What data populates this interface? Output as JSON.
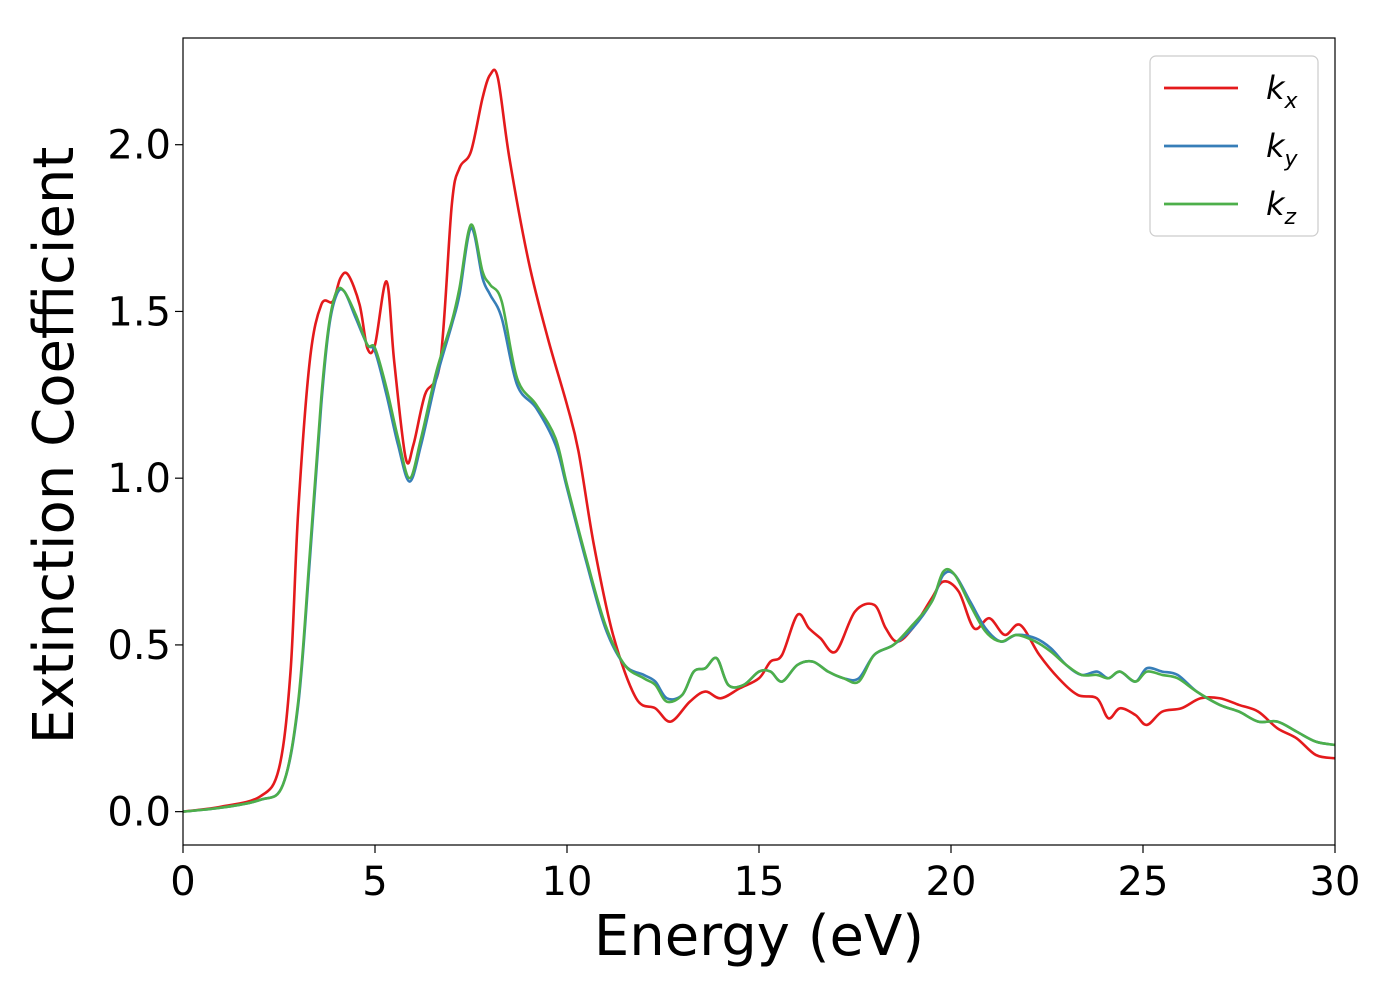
{
  "chart_data": {
    "type": "line",
    "title": "",
    "xlabel": "Energy (eV)",
    "ylabel": "Extinction Coefficient",
    "xlim": [
      0,
      30
    ],
    "ylim": [
      -0.1,
      2.32
    ],
    "xticks": [
      0,
      5,
      10,
      15,
      20,
      25,
      30
    ],
    "xtick_labels": [
      "0",
      "5",
      "10",
      "15",
      "20",
      "25",
      "30"
    ],
    "yticks": [
      0.0,
      0.5,
      1.0,
      1.5,
      2.0
    ],
    "ytick_labels": [
      "0.0",
      "0.5",
      "1.0",
      "1.5",
      "2.0"
    ],
    "grid": false,
    "legend_position": "top-right",
    "series": [
      {
        "name": "k_x",
        "label_main": "k",
        "label_sub": "x",
        "color": "#e41a1c",
        "x": [
          0,
          1,
          2,
          2.5,
          2.8,
          3.0,
          3.3,
          3.6,
          3.9,
          4.1,
          4.3,
          4.6,
          4.8,
          5.0,
          5.3,
          5.5,
          5.8,
          6.0,
          6.3,
          6.7,
          7.0,
          7.2,
          7.5,
          7.8,
          8.0,
          8.2,
          8.5,
          9.0,
          9.5,
          10.0,
          10.3,
          10.7,
          11.2,
          11.8,
          12.3,
          12.7,
          13.2,
          13.6,
          14.0,
          14.5,
          15.0,
          15.3,
          15.6,
          16.0,
          16.3,
          16.6,
          17.0,
          17.5,
          18.0,
          18.3,
          18.6,
          19.0,
          19.5,
          19.8,
          20.2,
          20.6,
          21.0,
          21.4,
          21.8,
          22.3,
          22.8,
          23.3,
          23.8,
          24.1,
          24.4,
          24.8,
          25.1,
          25.5,
          26.0,
          26.5,
          27.0,
          27.5,
          28.0,
          28.5,
          29.0,
          29.5,
          30.0
        ],
        "y": [
          0.0,
          0.015,
          0.045,
          0.13,
          0.42,
          0.9,
          1.35,
          1.52,
          1.53,
          1.6,
          1.61,
          1.52,
          1.39,
          1.4,
          1.59,
          1.35,
          1.06,
          1.1,
          1.25,
          1.35,
          1.82,
          1.93,
          1.98,
          2.14,
          2.21,
          2.2,
          1.96,
          1.65,
          1.42,
          1.22,
          1.08,
          0.8,
          0.53,
          0.34,
          0.31,
          0.27,
          0.33,
          0.36,
          0.34,
          0.37,
          0.4,
          0.45,
          0.47,
          0.59,
          0.55,
          0.52,
          0.48,
          0.6,
          0.62,
          0.55,
          0.51,
          0.55,
          0.64,
          0.69,
          0.66,
          0.55,
          0.58,
          0.53,
          0.56,
          0.47,
          0.4,
          0.35,
          0.34,
          0.28,
          0.31,
          0.29,
          0.26,
          0.3,
          0.31,
          0.34,
          0.34,
          0.32,
          0.3,
          0.25,
          0.22,
          0.17,
          0.16
        ]
      },
      {
        "name": "k_y",
        "label_main": "k",
        "label_sub": "y",
        "color": "#377eb8",
        "x": [
          0,
          1,
          2,
          2.6,
          3.0,
          3.3,
          3.6,
          3.8,
          4.0,
          4.2,
          4.5,
          4.8,
          5.0,
          5.3,
          5.6,
          5.9,
          6.2,
          6.6,
          7.0,
          7.2,
          7.5,
          7.8,
          8.0,
          8.3,
          8.7,
          9.2,
          9.7,
          10.0,
          10.5,
          11.0,
          11.5,
          12.0,
          12.3,
          12.6,
          13.0,
          13.3,
          13.6,
          13.9,
          14.2,
          14.6,
          15.0,
          15.3,
          15.6,
          16.0,
          16.4,
          16.8,
          17.2,
          17.6,
          18.0,
          18.5,
          19.0,
          19.5,
          19.8,
          20.1,
          20.5,
          20.9,
          21.3,
          21.7,
          22.2,
          22.6,
          23.0,
          23.4,
          23.8,
          24.1,
          24.4,
          24.8,
          25.1,
          25.5,
          25.9,
          26.4,
          27.0,
          27.5,
          28.0,
          28.5,
          29.0,
          29.5,
          30.0
        ],
        "y": [
          0.0,
          0.012,
          0.035,
          0.08,
          0.32,
          0.75,
          1.22,
          1.45,
          1.55,
          1.56,
          1.48,
          1.4,
          1.38,
          1.25,
          1.1,
          0.99,
          1.1,
          1.3,
          1.46,
          1.55,
          1.75,
          1.6,
          1.55,
          1.48,
          1.28,
          1.21,
          1.1,
          0.97,
          0.75,
          0.55,
          0.44,
          0.41,
          0.39,
          0.34,
          0.35,
          0.42,
          0.43,
          0.46,
          0.38,
          0.38,
          0.42,
          0.42,
          0.39,
          0.44,
          0.45,
          0.42,
          0.4,
          0.4,
          0.47,
          0.5,
          0.55,
          0.63,
          0.71,
          0.71,
          0.63,
          0.55,
          0.51,
          0.53,
          0.52,
          0.49,
          0.44,
          0.41,
          0.42,
          0.4,
          0.42,
          0.39,
          0.43,
          0.42,
          0.41,
          0.36,
          0.32,
          0.3,
          0.27,
          0.27,
          0.24,
          0.21,
          0.2
        ]
      },
      {
        "name": "k_z",
        "label_main": "k",
        "label_sub": "z",
        "color": "#4daf4a",
        "x": [
          0,
          1,
          2,
          2.6,
          3.0,
          3.3,
          3.6,
          3.8,
          4.0,
          4.2,
          4.5,
          4.8,
          5.0,
          5.3,
          5.6,
          5.9,
          6.2,
          6.6,
          7.0,
          7.2,
          7.5,
          7.8,
          8.0,
          8.3,
          8.7,
          9.2,
          9.7,
          10.0,
          10.5,
          11.0,
          11.5,
          12.0,
          12.3,
          12.6,
          13.0,
          13.3,
          13.6,
          13.9,
          14.2,
          14.6,
          15.0,
          15.3,
          15.6,
          16.0,
          16.4,
          16.8,
          17.2,
          17.6,
          18.0,
          18.5,
          19.0,
          19.5,
          19.8,
          20.1,
          20.5,
          20.9,
          21.3,
          21.7,
          22.2,
          22.6,
          23.0,
          23.4,
          23.8,
          24.1,
          24.4,
          24.8,
          25.1,
          25.5,
          25.9,
          26.4,
          27.0,
          27.5,
          28.0,
          28.5,
          29.0,
          29.5,
          30.0
        ],
        "y": [
          0.0,
          0.012,
          0.035,
          0.08,
          0.33,
          0.77,
          1.24,
          1.46,
          1.56,
          1.56,
          1.49,
          1.4,
          1.39,
          1.27,
          1.12,
          1.0,
          1.12,
          1.32,
          1.47,
          1.57,
          1.76,
          1.62,
          1.58,
          1.53,
          1.3,
          1.22,
          1.12,
          0.98,
          0.76,
          0.56,
          0.44,
          0.4,
          0.38,
          0.33,
          0.35,
          0.42,
          0.43,
          0.46,
          0.38,
          0.38,
          0.42,
          0.42,
          0.39,
          0.44,
          0.45,
          0.42,
          0.4,
          0.39,
          0.47,
          0.5,
          0.56,
          0.63,
          0.72,
          0.71,
          0.62,
          0.54,
          0.51,
          0.53,
          0.51,
          0.48,
          0.44,
          0.41,
          0.41,
          0.4,
          0.42,
          0.39,
          0.42,
          0.41,
          0.4,
          0.36,
          0.32,
          0.3,
          0.27,
          0.27,
          0.24,
          0.21,
          0.2
        ]
      }
    ]
  }
}
